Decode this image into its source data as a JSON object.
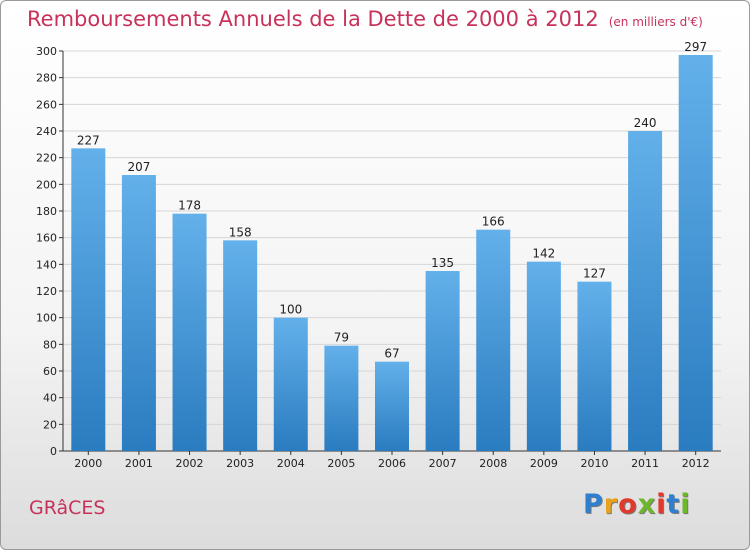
{
  "header": {
    "title": "Remboursements Annuels de la Dette de 2000 à 2012",
    "subtitle": "(en milliers d'€)"
  },
  "footer": {
    "town": "GRâCES",
    "logo_letters": [
      "P",
      "r",
      "o",
      "x",
      "i",
      "t",
      "i"
    ],
    "logo_colors": [
      "#2f7fd0",
      "#e8a21c",
      "#e03a2c",
      "#6cb82a",
      "#e03a2c",
      "#2f7fd0",
      "#6cb82a"
    ]
  },
  "colors": {
    "title": "#c8325a",
    "bar_light": "#63b0ea",
    "bar_dark": "#2a7cc0",
    "grid": "#d6d6d6"
  },
  "chart_data": {
    "type": "bar",
    "title": "Remboursements Annuels de la Dette de 2000 à 2012",
    "subtitle": "(en milliers d'€)",
    "categories": [
      "2000",
      "2001",
      "2002",
      "2003",
      "2004",
      "2005",
      "2006",
      "2007",
      "2008",
      "2009",
      "2010",
      "2011",
      "2012"
    ],
    "values": [
      227,
      207,
      178,
      158,
      100,
      79,
      67,
      135,
      166,
      142,
      127,
      240,
      297
    ],
    "ylim": [
      0,
      300
    ],
    "yticks": [
      0,
      20,
      40,
      60,
      80,
      100,
      120,
      140,
      160,
      180,
      200,
      220,
      240,
      260,
      280,
      300
    ],
    "grid": true,
    "data_labels": true
  }
}
